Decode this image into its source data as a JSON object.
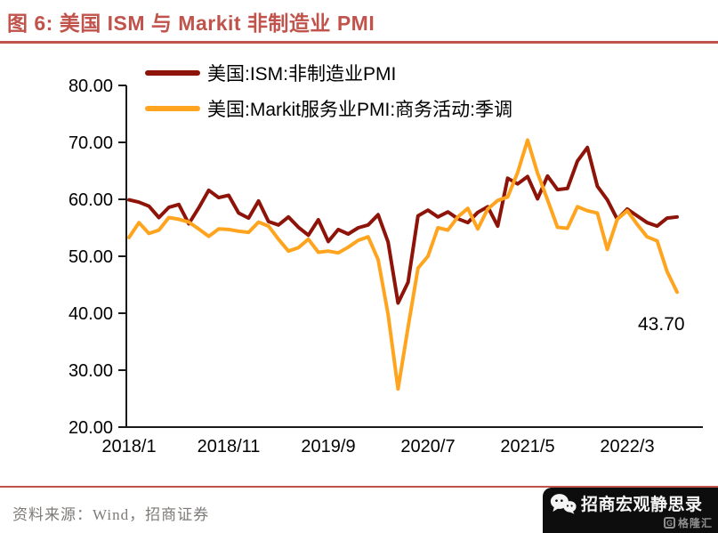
{
  "header": {
    "title": "图 6:  美国 ISM 与 Markit 非制造业 PMI"
  },
  "chart_data": {
    "type": "line",
    "title": "美国 ISM 与 Markit 非制造业 PMI",
    "grid": false,
    "legend_position": "top-left",
    "ylim": [
      20,
      80
    ],
    "y_ticks": [
      {
        "value": 80,
        "label": "80.00"
      },
      {
        "value": 70,
        "label": "70.00"
      },
      {
        "value": 60,
        "label": "60.00"
      },
      {
        "value": 50,
        "label": "50.00"
      },
      {
        "value": 40,
        "label": "40.00"
      },
      {
        "value": 30,
        "label": "30.00"
      },
      {
        "value": 20,
        "label": "20.00"
      }
    ],
    "x_unit": "month",
    "x_range": [
      "2018/1",
      "2022/8"
    ],
    "x_ticks": [
      {
        "month_index": 0,
        "label": "2018/1"
      },
      {
        "month_index": 10,
        "label": "2018/11"
      },
      {
        "month_index": 20,
        "label": "2019/9"
      },
      {
        "month_index": 30,
        "label": "2020/7"
      },
      {
        "month_index": 40,
        "label": "2021/5"
      },
      {
        "month_index": 50,
        "label": "2022/3"
      }
    ],
    "series": [
      {
        "name": "美国:ISM:非制造业PMI",
        "color": "#8E1409",
        "values": [
          59.9,
          59.5,
          58.8,
          56.8,
          58.6,
          59.1,
          55.7,
          58.5,
          61.6,
          60.3,
          60.7,
          57.6,
          56.7,
          59.7,
          56.1,
          55.5,
          56.9,
          55.1,
          53.7,
          56.4,
          52.6,
          54.7,
          53.9,
          55.0,
          55.5,
          57.3,
          52.5,
          41.8,
          45.4,
          57.1,
          58.1,
          56.9,
          57.8,
          56.6,
          55.9,
          57.7,
          58.7,
          55.3,
          63.7,
          62.7,
          64.0,
          60.1,
          64.1,
          61.7,
          61.9,
          66.7,
          69.1,
          62.3,
          59.9,
          56.5,
          58.3,
          57.1,
          55.9,
          55.3,
          56.7,
          56.9
        ]
      },
      {
        "name": "美国:Markit服务业PMI:商务活动:季调",
        "color": "#FFA41E",
        "values": [
          53.3,
          55.9,
          54.0,
          54.6,
          56.8,
          56.5,
          56.0,
          54.8,
          53.5,
          54.8,
          54.7,
          54.4,
          54.2,
          56.0,
          55.3,
          53.0,
          50.9,
          51.5,
          53.0,
          50.7,
          50.9,
          50.6,
          51.6,
          52.8,
          53.4,
          49.4,
          39.8,
          26.7,
          37.5,
          47.9,
          50.0,
          55.0,
          54.6,
          56.9,
          58.4,
          54.8,
          58.3,
          59.8,
          60.4,
          64.7,
          70.4,
          64.6,
          59.9,
          55.1,
          54.9,
          58.7,
          58.0,
          57.6,
          51.2,
          56.5,
          58.0,
          55.6,
          53.4,
          52.7,
          47.3,
          43.7
        ]
      }
    ],
    "annotation": {
      "text": "43.70",
      "month_index": 55,
      "value": 43.7
    }
  },
  "footer": {
    "source": "资料来源：Wind，招商证券"
  },
  "badge": {
    "title": "招商宏观静思录",
    "logo_letter": "G",
    "logo_text": "格隆汇"
  },
  "colors": {
    "accent": "#C0534B",
    "ism_line": "#8E1409",
    "markit_line": "#FFA41E",
    "axis": "#1a1a1a",
    "source_text": "#7d7a77",
    "badge_bg": "#0d0d0d"
  }
}
